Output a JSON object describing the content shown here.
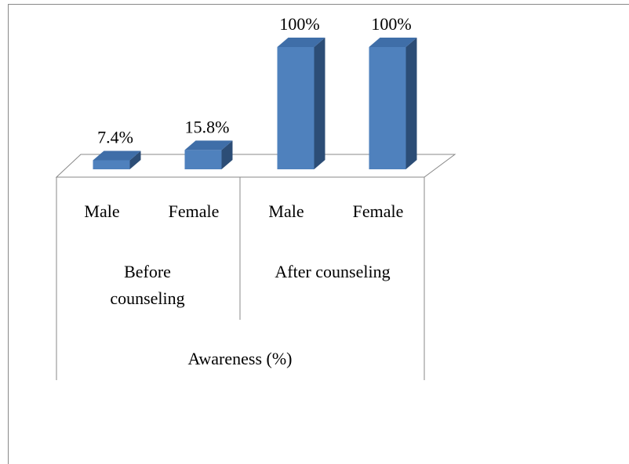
{
  "chart_data": {
    "type": "bar3d",
    "categories": [
      "Male",
      "Female",
      "Male",
      "Female"
    ],
    "groups": [
      "Before counseling",
      "After counseling"
    ],
    "axis_title": "Awareness (%)",
    "values": [
      7.4,
      15.8,
      100,
      100
    ],
    "value_labels": [
      "7.4%",
      "15.8%",
      "100%",
      "100%"
    ],
    "color": "#4f81bd"
  }
}
